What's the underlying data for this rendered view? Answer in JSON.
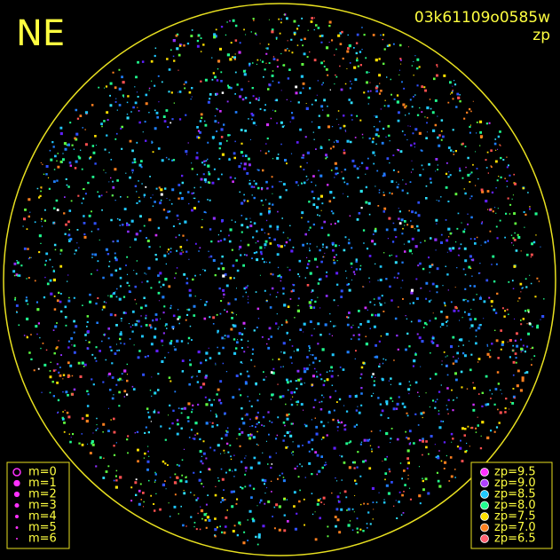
{
  "header": {
    "direction": "NE",
    "frame_id": "03k61109o0585w",
    "mode": "zp"
  },
  "magnitude_legend": [
    "m=0",
    "m=1",
    "m=2",
    "m=3",
    "m=4",
    "m=5",
    "m=6"
  ],
  "zp_legend": [
    {
      "label": "zp=9.5",
      "color": "#ff30ff"
    },
    {
      "label": "zp=9.0",
      "color": "#b040ff"
    },
    {
      "label": "zp=8.5",
      "color": "#20c8ff"
    },
    {
      "label": "zp=8.0",
      "color": "#20ff90"
    },
    {
      "label": "zp=7.5",
      "color": "#ffe000"
    },
    {
      "label": "zp=7.0",
      "color": "#ff8020"
    },
    {
      "label": "zp=6.5",
      "color": "#ff6070"
    }
  ]
}
